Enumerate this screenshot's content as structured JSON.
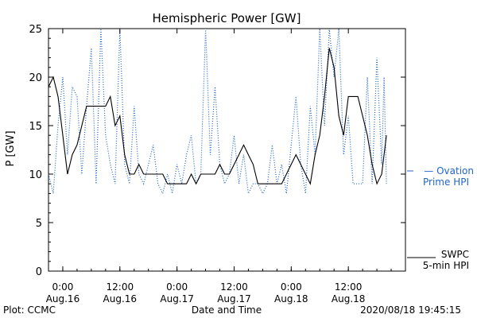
{
  "chart_data": {
    "type": "line",
    "title": "Hemispheric Power [GW]",
    "xlabel": "Date and Time",
    "ylabel": "P [GW]",
    "ylim": [
      0,
      25
    ],
    "xlim": [
      "2020-08-15T21:00",
      "2020-08-19T00:00"
    ],
    "yticks": [
      0,
      5,
      10,
      15,
      20,
      25
    ],
    "xticks": [
      {
        "t": "2020-08-16T00:00",
        "line1": "0:00",
        "line2": "Aug.16"
      },
      {
        "t": "2020-08-16T12:00",
        "line1": "12:00",
        "line2": "Aug.16"
      },
      {
        "t": "2020-08-17T00:00",
        "line1": "0:00",
        "line2": "Aug.17"
      },
      {
        "t": "2020-08-17T12:00",
        "line1": "12:00",
        "line2": "Aug.17"
      },
      {
        "t": "2020-08-18T00:00",
        "line1": "0:00",
        "line2": "Aug.18"
      },
      {
        "t": "2020-08-18T12:00",
        "line1": "12:00",
        "line2": "Aug.18"
      }
    ],
    "series": [
      {
        "name": "SWPC 5-min HPI",
        "color": "#000000",
        "style": "solid",
        "points": [
          [
            "2020-08-15T21:00",
            19
          ],
          [
            "2020-08-15T22:00",
            20
          ],
          [
            "2020-08-15T23:00",
            18
          ],
          [
            "2020-08-16T00:00",
            14
          ],
          [
            "2020-08-16T01:00",
            10
          ],
          [
            "2020-08-16T02:00",
            12
          ],
          [
            "2020-08-16T03:00",
            13
          ],
          [
            "2020-08-16T04:00",
            15
          ],
          [
            "2020-08-16T05:00",
            17
          ],
          [
            "2020-08-16T06:00",
            17
          ],
          [
            "2020-08-16T07:00",
            17
          ],
          [
            "2020-08-16T08:00",
            17
          ],
          [
            "2020-08-16T09:00",
            17
          ],
          [
            "2020-08-16T10:00",
            18
          ],
          [
            "2020-08-16T11:00",
            15
          ],
          [
            "2020-08-16T12:00",
            16
          ],
          [
            "2020-08-16T13:00",
            12
          ],
          [
            "2020-08-16T14:00",
            10
          ],
          [
            "2020-08-16T15:00",
            10
          ],
          [
            "2020-08-16T16:00",
            11
          ],
          [
            "2020-08-16T17:00",
            10
          ],
          [
            "2020-08-16T18:00",
            10
          ],
          [
            "2020-08-16T19:00",
            10
          ],
          [
            "2020-08-16T20:00",
            10
          ],
          [
            "2020-08-16T21:00",
            10
          ],
          [
            "2020-08-16T22:00",
            9
          ],
          [
            "2020-08-16T23:00",
            9
          ],
          [
            "2020-08-17T00:00",
            9
          ],
          [
            "2020-08-17T01:00",
            9
          ],
          [
            "2020-08-17T02:00",
            9
          ],
          [
            "2020-08-17T03:00",
            10
          ],
          [
            "2020-08-17T04:00",
            9
          ],
          [
            "2020-08-17T05:00",
            10
          ],
          [
            "2020-08-17T06:00",
            10
          ],
          [
            "2020-08-17T07:00",
            10
          ],
          [
            "2020-08-17T08:00",
            10
          ],
          [
            "2020-08-17T09:00",
            11
          ],
          [
            "2020-08-17T10:00",
            10
          ],
          [
            "2020-08-17T11:00",
            10
          ],
          [
            "2020-08-17T12:00",
            11
          ],
          [
            "2020-08-17T13:00",
            12
          ],
          [
            "2020-08-17T14:00",
            13
          ],
          [
            "2020-08-17T15:00",
            12
          ],
          [
            "2020-08-17T16:00",
            11
          ],
          [
            "2020-08-17T17:00",
            9
          ],
          [
            "2020-08-17T18:00",
            9
          ],
          [
            "2020-08-17T19:00",
            9
          ],
          [
            "2020-08-17T20:00",
            9
          ],
          [
            "2020-08-17T21:00",
            9
          ],
          [
            "2020-08-17T22:00",
            9
          ],
          [
            "2020-08-17T23:00",
            10
          ],
          [
            "2020-08-18T00:00",
            11
          ],
          [
            "2020-08-18T01:00",
            12
          ],
          [
            "2020-08-18T02:00",
            11
          ],
          [
            "2020-08-18T03:00",
            10
          ],
          [
            "2020-08-18T04:00",
            9
          ],
          [
            "2020-08-18T05:00",
            12
          ],
          [
            "2020-08-18T06:00",
            14
          ],
          [
            "2020-08-18T07:00",
            18
          ],
          [
            "2020-08-18T08:00",
            23
          ],
          [
            "2020-08-18T09:00",
            21
          ],
          [
            "2020-08-18T10:00",
            16
          ],
          [
            "2020-08-18T11:00",
            14
          ],
          [
            "2020-08-18T12:00",
            18
          ],
          [
            "2020-08-18T13:00",
            18
          ],
          [
            "2020-08-18T14:00",
            18
          ],
          [
            "2020-08-18T15:00",
            16
          ],
          [
            "2020-08-18T16:00",
            14
          ],
          [
            "2020-08-18T17:00",
            11
          ],
          [
            "2020-08-18T18:00",
            9
          ],
          [
            "2020-08-18T19:00",
            10
          ],
          [
            "2020-08-18T19:30",
            12
          ],
          [
            "2020-08-18T20:00",
            14
          ]
        ]
      },
      {
        "name": "Ovation Prime HPI",
        "color": "#2266cc",
        "style": "dotted",
        "points": [
          [
            "2020-08-15T21:00",
            10
          ],
          [
            "2020-08-15T22:00",
            8
          ],
          [
            "2020-08-15T23:00",
            15
          ],
          [
            "2020-08-16T00:00",
            20
          ],
          [
            "2020-08-16T01:00",
            12
          ],
          [
            "2020-08-16T02:00",
            19
          ],
          [
            "2020-08-16T03:00",
            18
          ],
          [
            "2020-08-16T04:00",
            10
          ],
          [
            "2020-08-16T05:00",
            17
          ],
          [
            "2020-08-16T06:00",
            23
          ],
          [
            "2020-08-16T07:00",
            9
          ],
          [
            "2020-08-16T08:00",
            25
          ],
          [
            "2020-08-16T09:00",
            14
          ],
          [
            "2020-08-16T10:00",
            11
          ],
          [
            "2020-08-16T11:00",
            9
          ],
          [
            "2020-08-16T12:00",
            25
          ],
          [
            "2020-08-16T13:00",
            11
          ],
          [
            "2020-08-16T14:00",
            9
          ],
          [
            "2020-08-16T15:00",
            17
          ],
          [
            "2020-08-16T16:00",
            10
          ],
          [
            "2020-08-16T17:00",
            9
          ],
          [
            "2020-08-16T18:00",
            11
          ],
          [
            "2020-08-16T19:00",
            13
          ],
          [
            "2020-08-16T20:00",
            9
          ],
          [
            "2020-08-16T21:00",
            8
          ],
          [
            "2020-08-16T22:00",
            10
          ],
          [
            "2020-08-16T23:00",
            8
          ],
          [
            "2020-08-17T00:00",
            11
          ],
          [
            "2020-08-17T01:00",
            9
          ],
          [
            "2020-08-17T02:00",
            12
          ],
          [
            "2020-08-17T03:00",
            14
          ],
          [
            "2020-08-17T04:00",
            9
          ],
          [
            "2020-08-17T05:00",
            10
          ],
          [
            "2020-08-17T06:00",
            25
          ],
          [
            "2020-08-17T07:00",
            12
          ],
          [
            "2020-08-17T08:00",
            19
          ],
          [
            "2020-08-17T09:00",
            11
          ],
          [
            "2020-08-17T10:00",
            9
          ],
          [
            "2020-08-17T11:00",
            10
          ],
          [
            "2020-08-17T12:00",
            14
          ],
          [
            "2020-08-17T13:00",
            9
          ],
          [
            "2020-08-17T14:00",
            12
          ],
          [
            "2020-08-17T15:00",
            8
          ],
          [
            "2020-08-17T16:00",
            9
          ],
          [
            "2020-08-17T17:00",
            9
          ],
          [
            "2020-08-17T18:00",
            8
          ],
          [
            "2020-08-17T19:00",
            9
          ],
          [
            "2020-08-17T20:00",
            13
          ],
          [
            "2020-08-17T21:00",
            9
          ],
          [
            "2020-08-17T22:00",
            11
          ],
          [
            "2020-08-17T23:00",
            8
          ],
          [
            "2020-08-18T00:00",
            13
          ],
          [
            "2020-08-18T01:00",
            18
          ],
          [
            "2020-08-18T02:00",
            11
          ],
          [
            "2020-08-18T03:00",
            8
          ],
          [
            "2020-08-18T04:00",
            17
          ],
          [
            "2020-08-18T05:00",
            12
          ],
          [
            "2020-08-18T06:00",
            25
          ],
          [
            "2020-08-18T07:00",
            15
          ],
          [
            "2020-08-18T08:00",
            25
          ],
          [
            "2020-08-18T09:00",
            20
          ],
          [
            "2020-08-18T10:00",
            25
          ],
          [
            "2020-08-18T11:00",
            12
          ],
          [
            "2020-08-18T12:00",
            16
          ],
          [
            "2020-08-18T13:00",
            9
          ],
          [
            "2020-08-18T14:00",
            9
          ],
          [
            "2020-08-18T15:00",
            9
          ],
          [
            "2020-08-18T16:00",
            20
          ],
          [
            "2020-08-18T17:00",
            9
          ],
          [
            "2020-08-18T18:00",
            22
          ],
          [
            "2020-08-18T19:00",
            11
          ],
          [
            "2020-08-18T19:30",
            20
          ],
          [
            "2020-08-18T20:00",
            9
          ]
        ]
      }
    ],
    "legend": [
      {
        "series": "Ovation Prime HPI",
        "line1": "— Ovation",
        "line2": "Prime HPI",
        "color": "#2266cc"
      },
      {
        "series": "SWPC 5-min HPI",
        "line1": "SWPC",
        "line2": "5-min HPI",
        "color": "#000000"
      }
    ],
    "legend_position": "right",
    "grid": false
  },
  "footer": {
    "plot_credit": "Plot: CCMC",
    "timestamp": "2020/08/18 19:45:15"
  }
}
